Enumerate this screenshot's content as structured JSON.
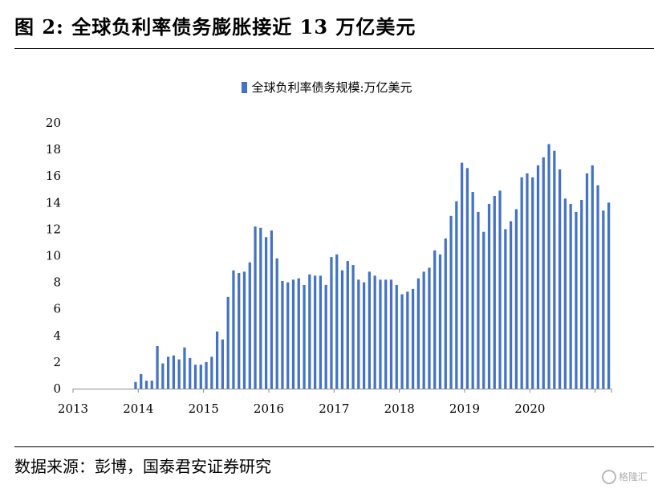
{
  "header": {
    "figure_title": "图 2:  全球负利率债务膨胀接近 13 万亿美元"
  },
  "footer": {
    "source": "数据来源：彭博，国泰君安证券研究",
    "watermark": "格隆汇"
  },
  "chart_data": {
    "type": "bar",
    "title": "",
    "xlabel": "",
    "ylabel": "",
    "ylim": [
      0,
      20
    ],
    "yticks": [
      0,
      2,
      4,
      6,
      8,
      10,
      12,
      14,
      16,
      18,
      20
    ],
    "x_tick_labels": [
      "2013",
      "2014",
      "2015",
      "2016",
      "2017",
      "2018",
      "2019",
      "2020"
    ],
    "grid": false,
    "legend_position": "top-center",
    "bar_color": "#4472C4",
    "series": [
      {
        "name": "全球负利率债务规模:万亿美元",
        "values": [
          0,
          0,
          0,
          0,
          0,
          0,
          0,
          0,
          0,
          0,
          0,
          0.5,
          1.1,
          0.6,
          0.6,
          3.2,
          1.9,
          2.4,
          2.5,
          2.2,
          3.1,
          2.3,
          1.8,
          1.8,
          2.0,
          2.4,
          4.3,
          3.7,
          6.9,
          8.9,
          8.7,
          8.8,
          9.5,
          12.2,
          12.1,
          11.4,
          11.9,
          9.8,
          8.1,
          8.0,
          8.2,
          8.3,
          7.8,
          8.6,
          8.5,
          8.5,
          7.8,
          9.9,
          10.1,
          8.9,
          9.6,
          9.3,
          8.2,
          8.0,
          8.8,
          8.5,
          8.2,
          8.2,
          8.2,
          7.8,
          7.1,
          7.3,
          7.5,
          8.3,
          8.8,
          9.1,
          10.4,
          10.1,
          11.3,
          13.0,
          14.1,
          17.0,
          16.6,
          14.8,
          13.3,
          11.8,
          13.9,
          14.5,
          14.9,
          12.0,
          12.6,
          13.5,
          15.9,
          16.2,
          15.9,
          16.8,
          17.4,
          18.4,
          17.9,
          16.5,
          14.3,
          13.9,
          13.3,
          14.2,
          16.2,
          16.8,
          15.3,
          13.4,
          14.0
        ]
      }
    ]
  }
}
